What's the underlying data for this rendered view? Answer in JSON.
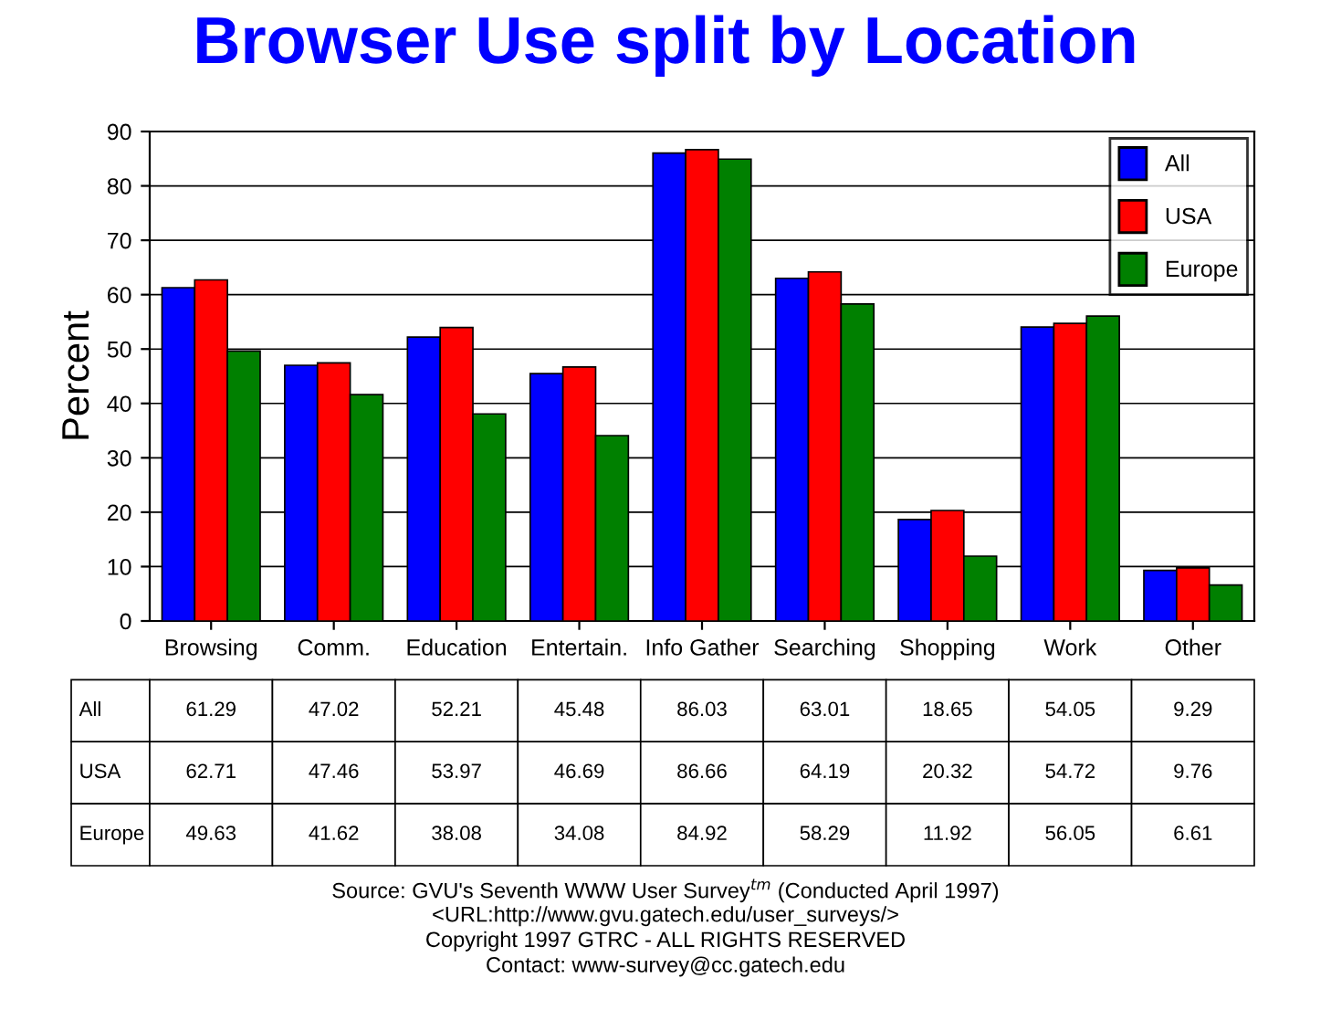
{
  "chart_data": {
    "type": "bar",
    "title": "Browser Use split by Location",
    "ylabel": "Percent",
    "categories": [
      "Browsing",
      "Comm.",
      "Education",
      "Entertain.",
      "Info Gather",
      "Searching",
      "Shopping",
      "Work",
      "Other"
    ],
    "series": [
      {
        "name": "All",
        "color": "#0000ff",
        "values": [
          61.29,
          47.02,
          52.21,
          45.48,
          86.03,
          63.01,
          18.65,
          54.05,
          9.29
        ]
      },
      {
        "name": "USA",
        "color": "#ff0000",
        "values": [
          62.71,
          47.46,
          53.97,
          46.69,
          86.66,
          64.19,
          20.32,
          54.72,
          9.76
        ]
      },
      {
        "name": "Europe",
        "color": "#008000",
        "values": [
          49.63,
          41.62,
          38.08,
          34.08,
          84.92,
          58.29,
          11.92,
          56.05,
          6.61
        ]
      }
    ],
    "ylim": [
      0,
      90
    ],
    "yticks": [
      0,
      10,
      20,
      30,
      40,
      50,
      60,
      70,
      80,
      90
    ],
    "grid": "y",
    "legend": "top right",
    "data_labels": true,
    "annotations": [
      "Source: GVU's Seventh WWW User Survey$^{tm}$ (Conducted April 1997)",
      "<URL:http://www.gvu.gatech.edu/user_surveys/>",
      "Copyright 1997 GTRC - ALL RIGHTS RESERVED",
      "Contact: www-survey@cc.gatech.edu"
    ]
  }
}
